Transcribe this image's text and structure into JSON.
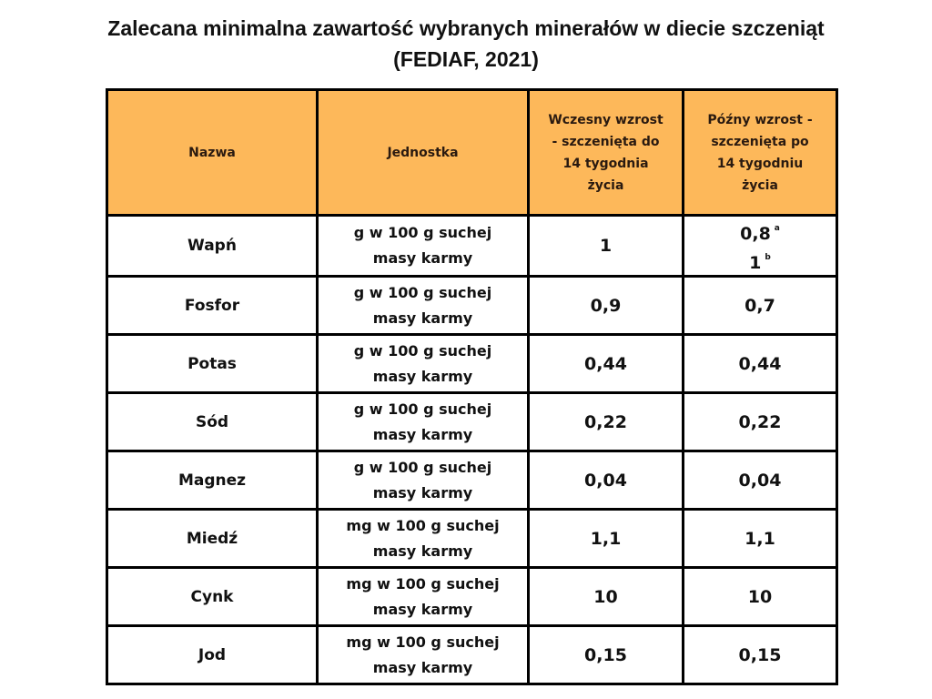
{
  "title": {
    "line1": "Zalecana minimalna zawartość wybranych minerałów w diecie szczeniąt",
    "line2": "(FEDIAF, 2021)"
  },
  "table": {
    "headers": [
      "Nazwa",
      "Jednostka",
      "Wczesny wzrost - szczenięta do 14 tygodnia życia",
      "Późny wzrost - szczenięta po 14 tygodniu życia"
    ],
    "rows": [
      {
        "name": "Wapń",
        "unit": "g w 100 g suchej masy karmy",
        "early": "1",
        "late": "0,8",
        "late_sup": "a",
        "late2": "1",
        "late2_sup": "b"
      },
      {
        "name": "Fosfor",
        "unit": "g w 100 g suchej masy karmy",
        "early": "0,9",
        "late": "0,7"
      },
      {
        "name": "Potas",
        "unit": "g w 100 g suchej masy karmy",
        "early": "0,44",
        "late": "0,44"
      },
      {
        "name": "Sód",
        "unit": "g w 100 g suchej masy karmy",
        "early": "0,22",
        "late": "0,22"
      },
      {
        "name": "Magnez",
        "unit": "g w 100 g suchej masy karmy",
        "early": "0,04",
        "late": "0,04"
      },
      {
        "name": "Miedź",
        "unit": "mg w 100 g suchej masy karmy",
        "early": "1,1",
        "late": "1,1"
      },
      {
        "name": "Cynk",
        "unit": "mg w 100 g suchej masy karmy",
        "early": "10",
        "late": "10"
      },
      {
        "name": "Jod",
        "unit": "mg w 100 g suchej masy karmy",
        "early": "0,15",
        "late": "0,15"
      }
    ]
  },
  "colors": {
    "header_bg": "#fdb85a",
    "border": "#000000"
  }
}
